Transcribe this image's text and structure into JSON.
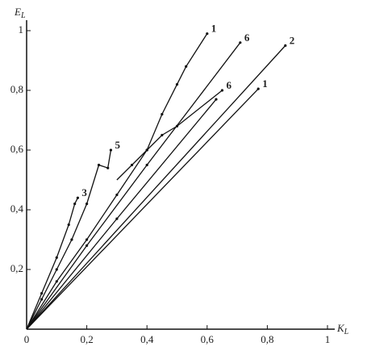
{
  "chart_data": {
    "type": "line",
    "x_label": {
      "main": "K",
      "sub": "L"
    },
    "y_label": {
      "main": "E",
      "sub": "L"
    },
    "xlim": [
      0,
      1
    ],
    "ylim": [
      0,
      1
    ],
    "xticks": [
      0,
      {
        "value": 0.2,
        "label": "0,2"
      },
      {
        "value": 0.4,
        "label": "0,4"
      },
      {
        "value": 0.6,
        "label": "0,6"
      },
      {
        "value": 0.8,
        "label": "0,8"
      },
      1
    ],
    "yticks": [
      {
        "value": 0.2,
        "label": "0,2"
      },
      {
        "value": 0.4,
        "label": "0,4"
      },
      {
        "value": 0.6,
        "label": "0,6"
      },
      {
        "value": 0.8,
        "label": "0,8"
      },
      1
    ],
    "series": [
      {
        "name": "1",
        "color": "#111111",
        "x": [
          0,
          0.77
        ],
        "values": [
          0,
          0.805
        ]
      },
      {
        "name": "2",
        "color": "#111111",
        "x": [
          0,
          0.86
        ],
        "values": [
          0,
          0.95
        ]
      },
      {
        "name": "6",
        "color": "#111111",
        "x": [
          0,
          0.2,
          0.4,
          0.71
        ],
        "values": [
          0,
          0.28,
          0.55,
          0.96
        ]
      },
      {
        "name": "1",
        "color": "#111111",
        "x": [
          0,
          0.1,
          0.2,
          0.3,
          0.4,
          0.45,
          0.5,
          0.53,
          0.6
        ],
        "values": [
          0,
          0.16,
          0.3,
          0.45,
          0.6,
          0.72,
          0.82,
          0.88,
          0.99
        ]
      },
      {
        "name": "5",
        "color": "#111111",
        "x": [
          0,
          0.05,
          0.1,
          0.15,
          0.2,
          0.24,
          0.27,
          0.28
        ],
        "values": [
          0,
          0.1,
          0.2,
          0.3,
          0.42,
          0.55,
          0.54,
          0.6
        ]
      },
      {
        "name": "3",
        "color": "#111111",
        "x": [
          0,
          0.05,
          0.1,
          0.14,
          0.16,
          0.17
        ],
        "values": [
          0,
          0.12,
          0.24,
          0.35,
          0.42,
          0.44
        ]
      },
      {
        "name": "6",
        "color": "#111111",
        "x": [
          0.3,
          0.35,
          0.4,
          0.45,
          0.5,
          0.65
        ],
        "values": [
          0.5,
          0.55,
          0.6,
          0.65,
          0.68,
          0.8
        ]
      },
      {
        "color": "#111111",
        "x": [
          0,
          0.3,
          0.63
        ],
        "values": [
          0,
          0.37,
          0.77
        ]
      }
    ]
  }
}
